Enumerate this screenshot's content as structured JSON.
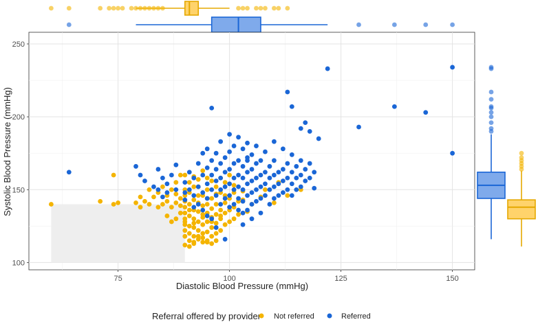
{
  "chart_data": {
    "type": "scatter",
    "title": "",
    "xlabel": "Diastolic Blood Pressure (mmHg)",
    "ylabel": "Systolic Blood Pressure (mmHg)",
    "xlim": [
      55,
      155
    ],
    "ylim": [
      95,
      258
    ],
    "x_ticks": [
      "75",
      "100",
      "125",
      "150"
    ],
    "y_ticks": [
      "100",
      "150",
      "200",
      "250"
    ],
    "x_tick_values": [
      75,
      100,
      125,
      150
    ],
    "y_tick_values": [
      100,
      150,
      200,
      250
    ],
    "shaded_region": {
      "x": [
        60,
        90
      ],
      "y": [
        100,
        140
      ]
    },
    "legend": {
      "title": "Referral offered by provider",
      "position": "bottom",
      "entries": [
        {
          "name": "Not referred",
          "color": "#F4B400"
        },
        {
          "name": "Referred",
          "color": "#1A66D6"
        }
      ]
    },
    "series": [
      {
        "name": "Not referred",
        "color": "#F4B400",
        "points": [
          [
            60,
            140
          ],
          [
            71,
            142
          ],
          [
            74,
            140
          ],
          [
            75,
            141
          ],
          [
            74,
            160
          ],
          [
            79,
            141
          ],
          [
            80,
            138
          ],
          [
            80,
            145
          ],
          [
            81,
            142
          ],
          [
            82,
            140
          ],
          [
            82,
            150
          ],
          [
            83,
            145
          ],
          [
            84,
            138
          ],
          [
            84,
            148
          ],
          [
            85,
            140
          ],
          [
            85,
            152
          ],
          [
            86,
            142
          ],
          [
            86,
            146
          ],
          [
            87,
            138
          ],
          [
            87,
            150
          ],
          [
            88,
            141
          ],
          [
            88,
            147
          ],
          [
            88,
            155
          ],
          [
            89,
            139
          ],
          [
            89,
            144
          ],
          [
            90,
            112
          ],
          [
            90,
            118
          ],
          [
            90,
            122
          ],
          [
            90,
            126
          ],
          [
            90,
            130
          ],
          [
            90,
            134
          ],
          [
            90,
            138
          ],
          [
            90,
            142
          ],
          [
            90,
            146
          ],
          [
            90,
            150
          ],
          [
            91,
            115
          ],
          [
            91,
            120
          ],
          [
            91,
            125
          ],
          [
            91,
            132
          ],
          [
            91,
            140
          ],
          [
            91,
            148
          ],
          [
            92,
            114
          ],
          [
            92,
            118
          ],
          [
            92,
            124
          ],
          [
            92,
            130
          ],
          [
            92,
            136
          ],
          [
            92,
            143
          ],
          [
            92,
            152
          ],
          [
            93,
            116
          ],
          [
            93,
            122
          ],
          [
            93,
            128
          ],
          [
            93,
            135
          ],
          [
            93,
            141
          ],
          [
            93,
            157
          ],
          [
            94,
            114
          ],
          [
            94,
            120
          ],
          [
            94,
            126
          ],
          [
            94,
            133
          ],
          [
            94,
            139
          ],
          [
            94,
            146
          ],
          [
            95,
            115
          ],
          [
            95,
            121
          ],
          [
            95,
            128
          ],
          [
            95,
            134
          ],
          [
            95,
            140
          ],
          [
            95,
            150
          ],
          [
            96,
            118
          ],
          [
            96,
            124
          ],
          [
            96,
            131
          ],
          [
            96,
            137
          ],
          [
            96,
            144
          ],
          [
            97,
            120
          ],
          [
            97,
            127
          ],
          [
            97,
            133
          ],
          [
            97,
            140
          ],
          [
            98,
            122
          ],
          [
            98,
            130
          ],
          [
            98,
            136
          ],
          [
            98,
            148
          ],
          [
            99,
            126
          ],
          [
            99,
            134
          ],
          [
            99,
            141
          ],
          [
            100,
            128
          ],
          [
            100,
            136
          ],
          [
            100,
            144
          ],
          [
            101,
            130
          ],
          [
            101,
            138
          ],
          [
            102,
            133
          ],
          [
            102,
            142
          ],
          [
            104,
            135
          ],
          [
            105,
            140
          ],
          [
            107,
            145
          ],
          [
            108,
            150
          ],
          [
            110,
            141
          ],
          [
            111,
            155
          ],
          [
            113,
            146
          ],
          [
            116,
            150
          ],
          [
            89,
            160
          ],
          [
            90,
            160
          ],
          [
            91,
            155
          ],
          [
            92,
            159
          ],
          [
            93,
            152
          ],
          [
            94,
            163
          ],
          [
            95,
            158
          ],
          [
            96,
            156
          ],
          [
            97,
            152
          ],
          [
            98,
            158
          ],
          [
            99,
            155
          ],
          [
            100,
            160
          ],
          [
            101,
            153
          ],
          [
            103,
            149
          ],
          [
            88,
            130
          ],
          [
            89,
            134
          ],
          [
            86,
            132
          ],
          [
            87,
            128
          ],
          [
            91,
            136
          ],
          [
            93,
            146
          ],
          [
            95,
            144
          ],
          [
            97,
            147
          ],
          [
            99,
            146
          ],
          [
            101,
            148
          ],
          [
            103,
            143
          ],
          [
            90,
            128
          ],
          [
            92,
            127
          ],
          [
            94,
            131
          ],
          [
            96,
            128
          ],
          [
            98,
            132
          ],
          [
            97,
            115
          ],
          [
            96,
            113
          ],
          [
            95,
            114
          ],
          [
            94,
            117
          ],
          [
            93,
            118
          ],
          [
            92,
            113
          ],
          [
            91,
            111
          ]
        ]
      },
      {
        "name": "Referred",
        "color": "#1A66D6",
        "points": [
          [
            64,
            162
          ],
          [
            79,
            166
          ],
          [
            80,
            160
          ],
          [
            81,
            156
          ],
          [
            83,
            152
          ],
          [
            84,
            164
          ],
          [
            85,
            158
          ],
          [
            86,
            154
          ],
          [
            87,
            160
          ],
          [
            88,
            167
          ],
          [
            90,
            148
          ],
          [
            90,
            155
          ],
          [
            91,
            150
          ],
          [
            91,
            162
          ],
          [
            92,
            146
          ],
          [
            92,
            158
          ],
          [
            93,
            152
          ],
          [
            93,
            168
          ],
          [
            94,
            148
          ],
          [
            94,
            160
          ],
          [
            94,
            175
          ],
          [
            95,
            144
          ],
          [
            95,
            154
          ],
          [
            95,
            165
          ],
          [
            95,
            178
          ],
          [
            96,
            150
          ],
          [
            96,
            160
          ],
          [
            96,
            170
          ],
          [
            96,
            206
          ],
          [
            97,
            146
          ],
          [
            97,
            156
          ],
          [
            97,
            164
          ],
          [
            97,
            175
          ],
          [
            98,
            140
          ],
          [
            98,
            150
          ],
          [
            98,
            158
          ],
          [
            98,
            168
          ],
          [
            98,
            183
          ],
          [
            99,
            144
          ],
          [
            99,
            152
          ],
          [
            99,
            162
          ],
          [
            99,
            172
          ],
          [
            100,
            138
          ],
          [
            100,
            146
          ],
          [
            100,
            154
          ],
          [
            100,
            164
          ],
          [
            100,
            176
          ],
          [
            100,
            188
          ],
          [
            101,
            140
          ],
          [
            101,
            150
          ],
          [
            101,
            158
          ],
          [
            101,
            168
          ],
          [
            101,
            180
          ],
          [
            102,
            136
          ],
          [
            102,
            144
          ],
          [
            102,
            152
          ],
          [
            102,
            160
          ],
          [
            102,
            170
          ],
          [
            102,
            186
          ],
          [
            103,
            134
          ],
          [
            103,
            142
          ],
          [
            103,
            150
          ],
          [
            103,
            158
          ],
          [
            103,
            166
          ],
          [
            103,
            178
          ],
          [
            104,
            136
          ],
          [
            104,
            146
          ],
          [
            104,
            154
          ],
          [
            104,
            162
          ],
          [
            104,
            172
          ],
          [
            104,
            182
          ],
          [
            105,
            140
          ],
          [
            105,
            148
          ],
          [
            105,
            156
          ],
          [
            105,
            164
          ],
          [
            105,
            174
          ],
          [
            106,
            142
          ],
          [
            106,
            150
          ],
          [
            106,
            158
          ],
          [
            106,
            168
          ],
          [
            106,
            180
          ],
          [
            107,
            144
          ],
          [
            107,
            152
          ],
          [
            107,
            160
          ],
          [
            107,
            170
          ],
          [
            108,
            146
          ],
          [
            108,
            154
          ],
          [
            108,
            162
          ],
          [
            108,
            176
          ],
          [
            109,
            140
          ],
          [
            109,
            150
          ],
          [
            109,
            158
          ],
          [
            109,
            166
          ],
          [
            110,
            144
          ],
          [
            110,
            152
          ],
          [
            110,
            160
          ],
          [
            110,
            170
          ],
          [
            110,
            183
          ],
          [
            111,
            146
          ],
          [
            111,
            154
          ],
          [
            111,
            162
          ],
          [
            112,
            148
          ],
          [
            112,
            156
          ],
          [
            112,
            164
          ],
          [
            112,
            178
          ],
          [
            113,
            150
          ],
          [
            113,
            158
          ],
          [
            113,
            168
          ],
          [
            113,
            217
          ],
          [
            114,
            146
          ],
          [
            114,
            154
          ],
          [
            114,
            162
          ],
          [
            114,
            174
          ],
          [
            114,
            207
          ],
          [
            115,
            150
          ],
          [
            115,
            158
          ],
          [
            115,
            166
          ],
          [
            116,
            152
          ],
          [
            116,
            160
          ],
          [
            116,
            170
          ],
          [
            116,
            192
          ],
          [
            117,
            156
          ],
          [
            117,
            164
          ],
          [
            117,
            196
          ],
          [
            118,
            158
          ],
          [
            118,
            168
          ],
          [
            118,
            190
          ],
          [
            119,
            151
          ],
          [
            119,
            162
          ],
          [
            120,
            185
          ],
          [
            122,
            233
          ],
          [
            129,
            193
          ],
          [
            137,
            207
          ],
          [
            144,
            203
          ],
          [
            150,
            234
          ],
          [
            150,
            175
          ],
          [
            99,
            116
          ],
          [
            97,
            124
          ],
          [
            96,
            130
          ],
          [
            95,
            132
          ],
          [
            94,
            136
          ],
          [
            93,
            140
          ],
          [
            92,
            138
          ],
          [
            90,
            143
          ],
          [
            88,
            150
          ],
          [
            86,
            148
          ],
          [
            85,
            145
          ],
          [
            84,
            150
          ],
          [
            103,
            126
          ],
          [
            105,
            130
          ],
          [
            107,
            134
          ],
          [
            104,
            170
          ]
        ]
      }
    ],
    "marginal_x": [
      {
        "name": "Not referred",
        "box": {
          "min": 79,
          "q1": 90,
          "median": 91,
          "q3": 93,
          "max": 100
        },
        "outliers": [
          60,
          64,
          71,
          73,
          74,
          75,
          76,
          78,
          79,
          80,
          81,
          82,
          83,
          84,
          85,
          102,
          103,
          104,
          106,
          107,
          108,
          110,
          111,
          113
        ]
      },
      {
        "name": "Referred",
        "box": {
          "min": 79,
          "q1": 96,
          "median": 102,
          "q3": 107,
          "max": 122
        },
        "outliers": [
          64,
          129,
          137,
          144,
          150
        ]
      }
    ],
    "marginal_y": [
      {
        "name": "Referred",
        "box": {
          "min": 116,
          "q1": 144,
          "median": 153,
          "q3": 162,
          "max": 188
        },
        "outliers": [
          190,
          192,
          196,
          200,
          203,
          206,
          207,
          212,
          217,
          233,
          234
        ]
      },
      {
        "name": "Not referred",
        "box": {
          "min": 111,
          "q1": 130,
          "median": 138,
          "q3": 143,
          "max": 163
        },
        "outliers": [
          164,
          166,
          168,
          170,
          172,
          175
        ]
      }
    ]
  }
}
